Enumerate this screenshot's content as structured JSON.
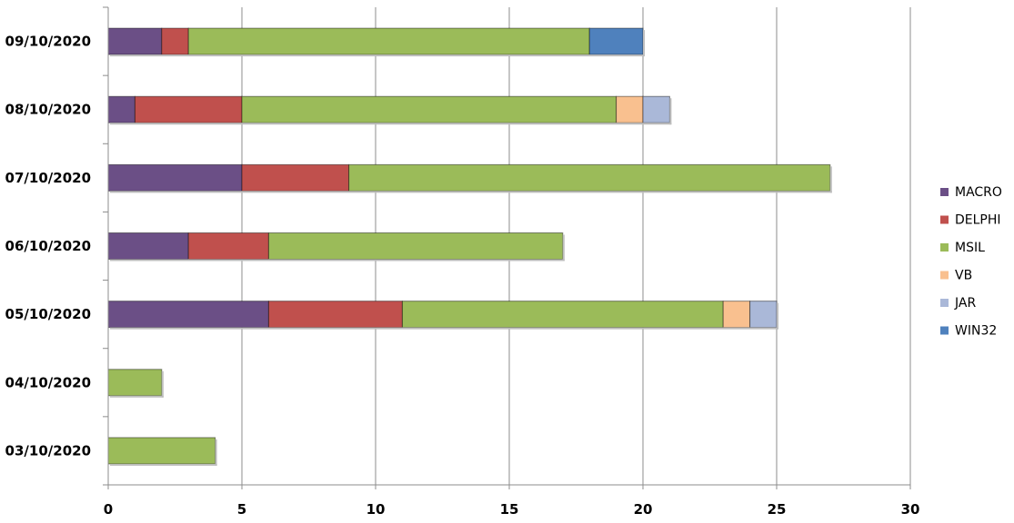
{
  "chart_data": {
    "type": "bar",
    "orientation": "horizontal",
    "stacked": true,
    "title": "",
    "xlabel": "",
    "ylabel": "",
    "xlim": [
      0,
      30
    ],
    "x_ticks": [
      "0",
      "5",
      "10",
      "15",
      "20",
      "25",
      "30"
    ],
    "grid": true,
    "legend_position": "right",
    "categories": [
      "09/10/2020",
      "08/10/2020",
      "07/10/2020",
      "06/10/2020",
      "05/10/2020",
      "04/10/2020",
      "03/10/2020"
    ],
    "series": [
      {
        "name": "MACRO",
        "color": "#6b4f86",
        "values": [
          2,
          1,
          5,
          3,
          6,
          0,
          0
        ]
      },
      {
        "name": "DELPHI",
        "color": "#c0504d",
        "values": [
          1,
          4,
          4,
          3,
          5,
          0,
          0
        ]
      },
      {
        "name": "MSIL",
        "color": "#9bbb59",
        "values": [
          15,
          14,
          18,
          11,
          12,
          2,
          4
        ]
      },
      {
        "name": "VB",
        "color": "#f9c08f",
        "values": [
          0,
          1,
          0,
          0,
          1,
          0,
          0
        ]
      },
      {
        "name": "JAR",
        "color": "#aab8d8",
        "values": [
          0,
          1,
          0,
          0,
          1,
          0,
          0
        ]
      },
      {
        "name": "WIN32",
        "color": "#4f81bd",
        "values": [
          2,
          0,
          0,
          0,
          0,
          0,
          0
        ]
      }
    ]
  }
}
